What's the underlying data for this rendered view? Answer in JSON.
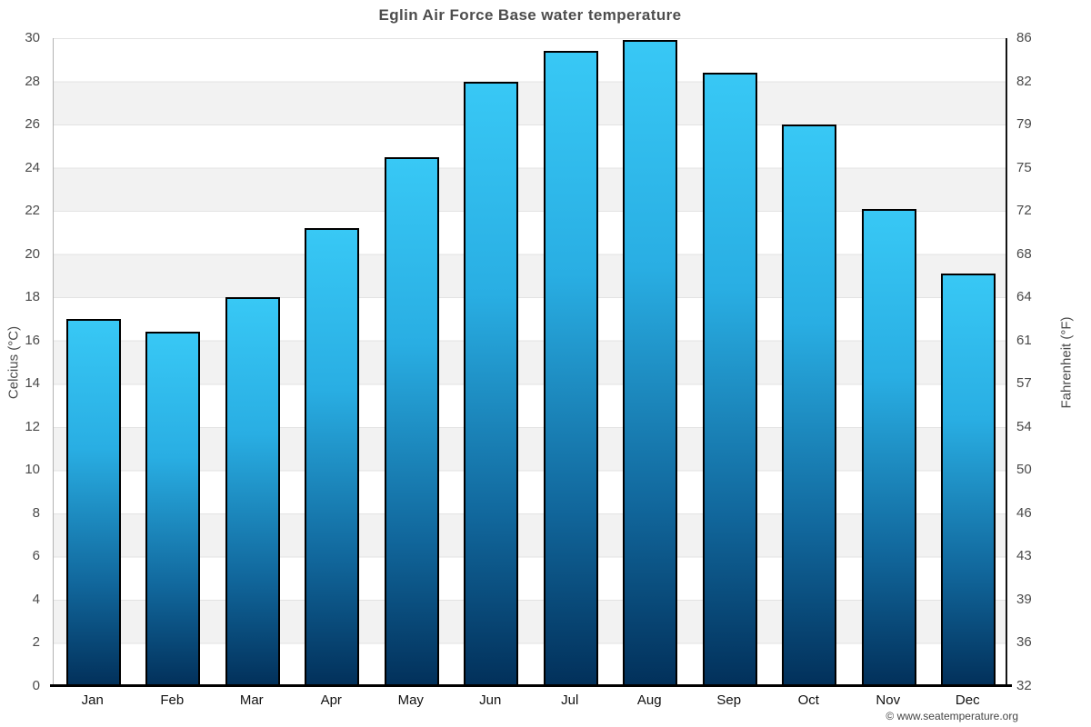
{
  "title": "Eglin Air Force Base water temperature",
  "watermark": "© www.seatemperature.org",
  "chart_data": {
    "type": "bar",
    "title": "Eglin Air Force Base water temperature",
    "categories": [
      "Jan",
      "Feb",
      "Mar",
      "Apr",
      "May",
      "Jun",
      "Jul",
      "Aug",
      "Sep",
      "Oct",
      "Nov",
      "Dec"
    ],
    "series": [
      {
        "name": "Water temperature (°C)",
        "values": [
          17.0,
          16.4,
          18.0,
          21.2,
          24.5,
          28.0,
          29.4,
          29.9,
          28.4,
          26.0,
          22.1,
          19.1
        ]
      }
    ],
    "xlabel": "",
    "ylabel_left": "Celcius (°C)",
    "ylabel_right": "Fahrenheit (°F)",
    "ylim_left": [
      0,
      30
    ],
    "ylim_right": [
      32,
      86
    ],
    "yticks_left": [
      30,
      28,
      26,
      24,
      22,
      20,
      18,
      16,
      14,
      12,
      10,
      8,
      6,
      4,
      2,
      0
    ],
    "yticks_right": [
      86,
      82,
      79,
      75,
      72,
      68,
      64,
      61,
      57,
      54,
      50,
      46,
      43,
      39,
      36,
      32
    ],
    "grid": "alternating 2°C horizontal bands, light gray on white, thin gridline at each tick",
    "legend_position": "none",
    "colors": {
      "bar_gradient_top": "#38c8f5",
      "bar_gradient_mid": "#1e9fd8",
      "bar_gradient_bottom": "#02305a",
      "bar_border": "#000000",
      "band_fill": "#f2f2f2",
      "gridline": "#e3e3e3",
      "left_axis_line": "#b3b3b3",
      "right_axis_line": "#151515",
      "bottom_axis_line": "#000000",
      "title_text": "#4d4d4d",
      "tick_text": "#4a4a4a",
      "month_text": "#111111",
      "watermark_text": "#454545"
    }
  }
}
